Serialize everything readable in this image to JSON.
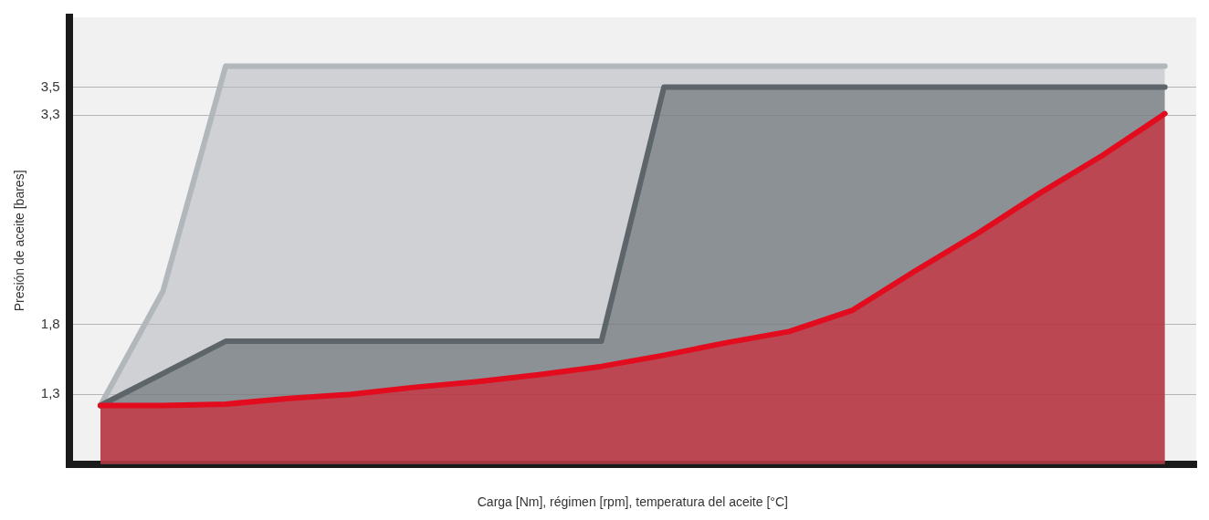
{
  "chart_data": {
    "type": "area",
    "xlabel": "Carga [Nm], régimen [rpm], temperatura del aceite [°C]",
    "ylabel": "Presión de aceite [bares]",
    "categories": [
      null,
      null,
      null,
      null,
      null,
      null,
      null,
      null,
      null,
      null,
      null,
      null,
      null,
      null,
      null,
      null,
      null,
      null
    ],
    "ylim": [
      0.8,
      4.0
    ],
    "yticks": [
      {
        "value": 1.3,
        "label": "1,3"
      },
      {
        "value": 1.8,
        "label": "1,8"
      },
      {
        "value": 3.3,
        "label": "3,3"
      },
      {
        "value": 3.5,
        "label": "3,5"
      }
    ],
    "grid": "y",
    "legend": false,
    "series": [
      {
        "color": "#b2b7bb",
        "values": [
          1.22,
          2.04,
          3.65,
          3.65,
          3.65,
          3.65,
          3.65,
          3.65,
          3.65,
          3.65,
          3.65,
          3.65,
          3.65,
          3.65,
          3.65,
          3.65,
          3.65,
          3.65
        ]
      },
      {
        "color": "#5e656a",
        "values": [
          1.22,
          1.45,
          1.68,
          1.68,
          1.68,
          1.68,
          1.68,
          1.68,
          1.68,
          3.5,
          3.5,
          3.5,
          3.5,
          3.5,
          3.5,
          3.5,
          3.5,
          3.5
        ]
      },
      {
        "color": "#e30b1e",
        "values": [
          1.22,
          1.22,
          1.23,
          1.27,
          1.3,
          1.35,
          1.39,
          1.44,
          1.5,
          1.58,
          1.67,
          1.75,
          1.9,
          2.18,
          2.45,
          2.74,
          3.01,
          3.31
        ]
      }
    ]
  }
}
